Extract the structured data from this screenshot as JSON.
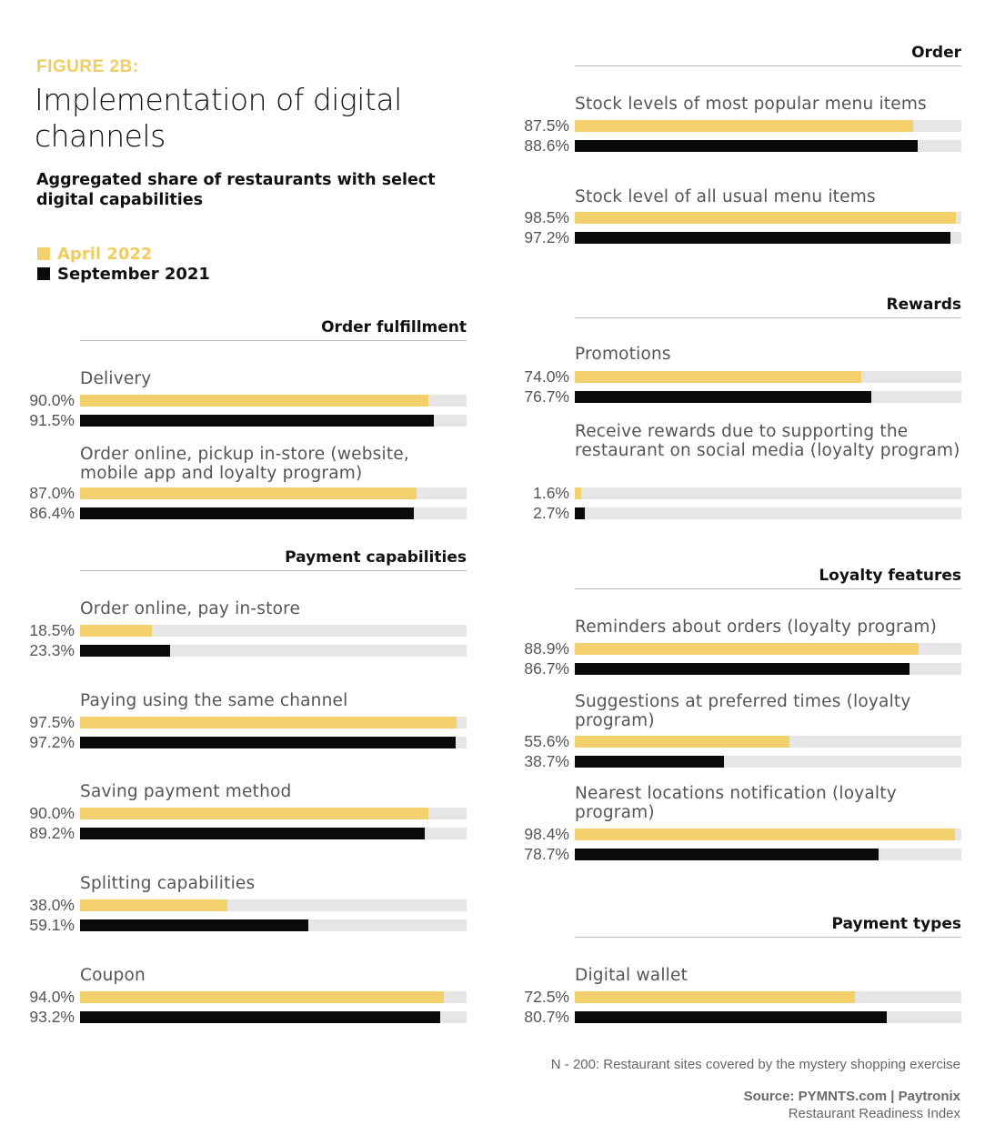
{
  "figure_label": "FIGURE 2B:",
  "title": "Implementation of digital channels",
  "subtitle": "Aggregated share of restaurants with select digital capabilities",
  "legend": [
    {
      "label": "April 2022",
      "color": "#f2d06b"
    },
    {
      "label": "September 2021",
      "color": "#0a0a0a"
    }
  ],
  "colors": {
    "april": "#f2d06b",
    "september": "#0a0a0a",
    "track": "#e6e6e6"
  },
  "chart_data": {
    "type": "bar",
    "orientation": "horizontal",
    "xlim": [
      0,
      100
    ],
    "unit": "%",
    "series_names": [
      "April 2022",
      "September 2021"
    ],
    "sections": [
      {
        "id": "order-fulfillment",
        "title": "Order fulfillment",
        "items": [
          {
            "label": "Delivery",
            "values": [
              90.0,
              91.5
            ],
            "labels": [
              "90.0%",
              "91.5%"
            ]
          },
          {
            "label": "Order online, pickup in-store (website, mobile app and loyalty program)",
            "values": [
              87.0,
              86.4
            ],
            "labels": [
              "87.0%",
              "86.4%"
            ]
          }
        ]
      },
      {
        "id": "payment-capabilities",
        "title": "Payment capabilities",
        "items": [
          {
            "label": "Order online, pay in-store",
            "values": [
              18.5,
              23.3
            ],
            "labels": [
              "18.5%",
              "23.3%"
            ]
          },
          {
            "label": "Paying using the same channel",
            "values": [
              97.5,
              97.2
            ],
            "labels": [
              "97.5%",
              "97.2%"
            ]
          },
          {
            "label": "Saving payment method",
            "values": [
              90.0,
              89.2
            ],
            "labels": [
              "90.0%",
              "89.2%"
            ]
          },
          {
            "label": "Splitting capabilities",
            "values": [
              38.0,
              59.1
            ],
            "labels": [
              "38.0%",
              "59.1%"
            ]
          },
          {
            "label": "Coupon",
            "values": [
              94.0,
              93.2
            ],
            "labels": [
              "94.0%",
              "93.2%"
            ]
          }
        ]
      },
      {
        "id": "order",
        "title": "Order",
        "items": [
          {
            "label": "Stock levels of most popular menu items",
            "values": [
              87.5,
              88.6
            ],
            "labels": [
              "87.5%",
              "88.6%"
            ]
          },
          {
            "label": "Stock level of all usual menu items",
            "values": [
              98.5,
              97.2
            ],
            "labels": [
              "98.5%",
              "97.2%"
            ]
          }
        ]
      },
      {
        "id": "rewards",
        "title": "Rewards",
        "items": [
          {
            "label": "Promotions",
            "values": [
              74.0,
              76.7
            ],
            "labels": [
              "74.0%",
              "76.7%"
            ]
          },
          {
            "label": "Receive rewards due to supporting the restaurant on social media (loyalty program)",
            "values": [
              1.6,
              2.7
            ],
            "labels": [
              "1.6%",
              "2.7%"
            ]
          }
        ]
      },
      {
        "id": "loyalty-features",
        "title": "Loyalty features",
        "items": [
          {
            "label": "Reminders about orders (loyalty program)",
            "values": [
              88.9,
              86.7
            ],
            "labels": [
              "88.9%",
              "86.7%"
            ]
          },
          {
            "label": "Suggestions at preferred times (loyalty program)",
            "values": [
              55.6,
              38.7
            ],
            "labels": [
              "55.6%",
              "38.7%"
            ]
          },
          {
            "label": "Nearest locations notification (loyalty program)",
            "values": [
              98.4,
              78.7
            ],
            "labels": [
              "98.4%",
              "78.7%"
            ]
          }
        ]
      },
      {
        "id": "payment-types",
        "title": "Payment types",
        "items": [
          {
            "label": "Digital wallet",
            "values": [
              72.5,
              80.7
            ],
            "labels": [
              "72.5%",
              "80.7%"
            ]
          }
        ]
      }
    ]
  },
  "footnote": "N - 200: Restaurant sites covered by the mystery shopping exercise",
  "source": {
    "prefix": "Source: ",
    "org1": "PYMNTS.com",
    "separator": " | ",
    "org2": "Paytronix",
    "index_name": "Restaurant Readiness Index"
  }
}
